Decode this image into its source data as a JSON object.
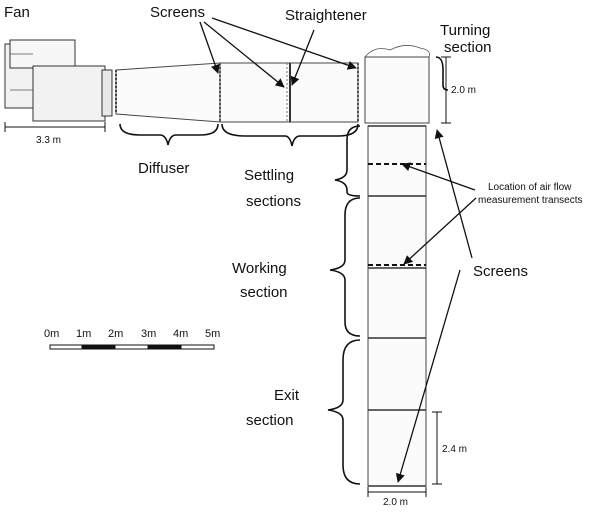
{
  "labels": {
    "fan": "Fan",
    "screens_top": "Screens",
    "straightener": "Straightener",
    "turning_line1": "Turning",
    "turning_line2": "section",
    "diffuser": "Diffuser",
    "settling_line1": "Settling",
    "settling_line2": "sections",
    "working_line1": "Working",
    "working_line2": "section",
    "exit_line1": "Exit",
    "exit_line2": "section",
    "transects_line1": "Location of air flow",
    "transects_line2": "measurement transects",
    "screens_right": "Screens"
  },
  "dimensions": {
    "fan_length": "3.3 m",
    "turning_height": "2.0 m",
    "exit_height": "2.4 m",
    "duct_width": "2.0 m"
  },
  "scale_bar": {
    "ticks": [
      "0m",
      "1m",
      "2m",
      "3m",
      "4m",
      "5m"
    ]
  }
}
